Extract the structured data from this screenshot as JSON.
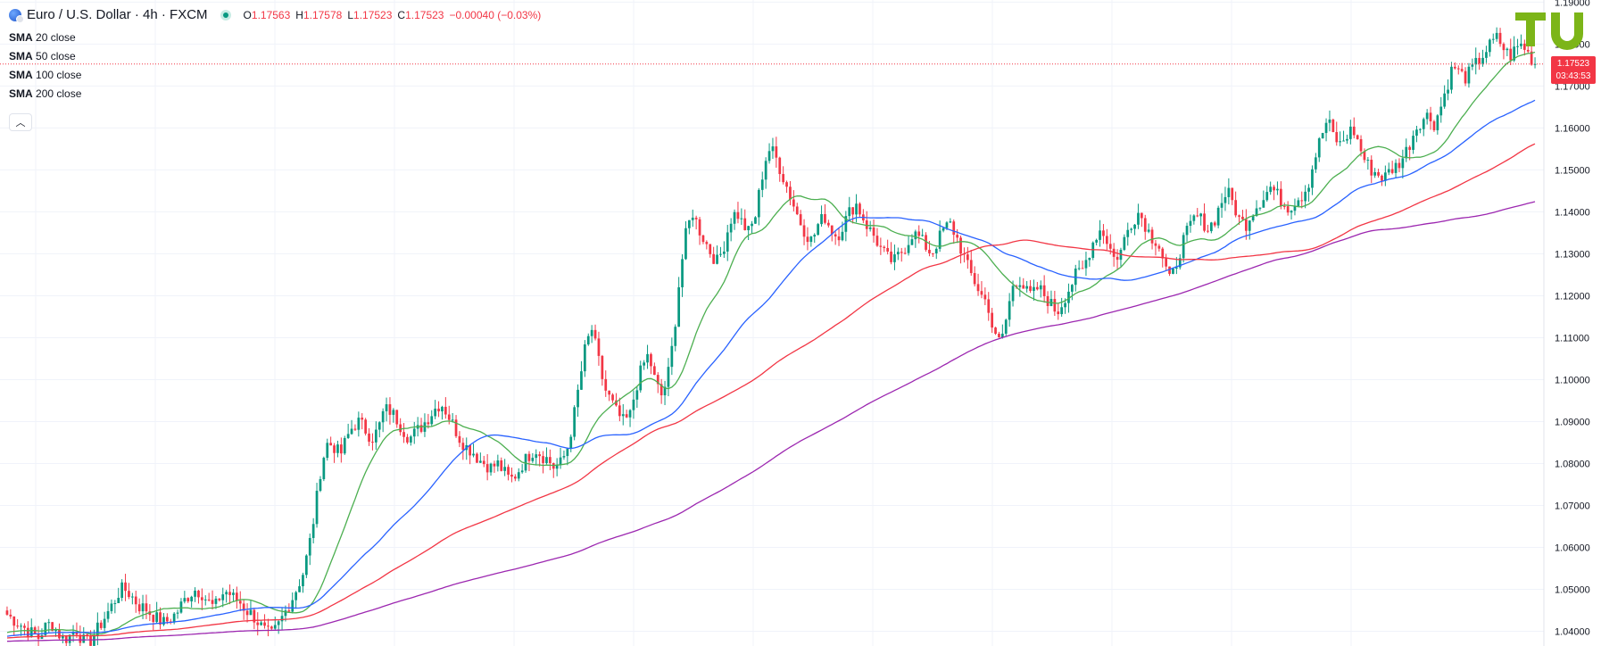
{
  "header": {
    "title": "Euro / U.S. Dollar · 4h · FXCM",
    "open_label": "O",
    "open": "1.17563",
    "high_label": "H",
    "high": "1.17578",
    "low_label": "L",
    "low": "1.17523",
    "close_label": "C",
    "close": "1.17523",
    "change": "−0.00040 (−0.03%)",
    "icon": "euro-dollar-flag-icon"
  },
  "indicators": [
    {
      "name": "SMA",
      "params": "20 close",
      "color": "#4caf50"
    },
    {
      "name": "SMA",
      "params": "50 close",
      "color": "#2962ff"
    },
    {
      "name": "SMA",
      "params": "100 close",
      "color": "#f23645"
    },
    {
      "name": "SMA",
      "params": "200 close",
      "color": "#9c27b0"
    }
  ],
  "price_tag": {
    "price": "1.17523",
    "countdown": "03:43:53",
    "color": "#f23645"
  },
  "logo": {
    "text": "TU",
    "color": "#7cb518"
  },
  "colors": {
    "up": "#089981",
    "down": "#f23645",
    "grid": "#f0f3fa",
    "axis_text": "#131722"
  },
  "chart_data": {
    "type": "candlestick",
    "title": "Euro / U.S. Dollar · 4h · FXCM",
    "y_axis_ticks": [
      "1.19000",
      "1.18000",
      "1.17000",
      "1.16000",
      "1.15000",
      "1.14000",
      "1.13000",
      "1.12000",
      "1.11000",
      "1.10000",
      "1.09000",
      "1.08000",
      "1.07000",
      "1.06000",
      "1.05000",
      "1.04000"
    ],
    "ylim": [
      1.0365,
      1.1905
    ],
    "last_price": 1.17523,
    "close_path": [
      1.044,
      1.0428,
      1.0418,
      1.0405,
      1.0395,
      1.0385,
      1.041,
      1.042,
      1.0398,
      1.038,
      1.039,
      1.0405,
      1.0378,
      1.0372,
      1.0395,
      1.042,
      1.0445,
      1.047,
      1.05,
      1.0498,
      1.048,
      1.046,
      1.0455,
      1.044,
      1.0428,
      1.042,
      1.043,
      1.0445,
      1.047,
      1.0488,
      1.05,
      1.049,
      1.047,
      1.0455,
      1.0488,
      1.0495,
      1.048,
      1.047,
      1.045,
      1.044,
      1.042,
      1.04,
      1.039,
      1.041,
      1.044,
      1.0468,
      1.05,
      1.0535,
      1.06,
      1.069,
      1.08,
      1.085,
      1.084,
      1.082,
      1.086,
      1.089,
      1.09,
      1.088,
      1.086,
      1.088,
      1.093,
      1.0925,
      1.0905,
      1.088,
      1.086,
      1.0875,
      1.089,
      1.091,
      1.093,
      1.0945,
      1.092,
      1.089,
      1.086,
      1.084,
      1.083,
      1.081,
      1.08,
      1.079,
      1.08,
      1.078,
      1.076,
      1.0775,
      1.08,
      1.082,
      1.0835,
      1.082,
      1.081,
      1.079,
      1.08,
      1.083,
      1.09,
      1.099,
      1.108,
      1.112,
      1.105,
      1.098,
      1.095,
      1.092,
      1.09,
      1.091,
      1.098,
      1.103,
      1.106,
      1.1,
      1.096,
      1.1,
      1.11,
      1.125,
      1.135,
      1.14,
      1.136,
      1.133,
      1.13,
      1.128,
      1.132,
      1.138,
      1.14,
      1.137,
      1.135,
      1.139,
      1.148,
      1.155,
      1.154,
      1.15,
      1.146,
      1.142,
      1.138,
      1.135,
      1.133,
      1.137,
      1.139,
      1.136,
      1.134,
      1.137,
      1.14,
      1.142,
      1.139,
      1.136,
      1.134,
      1.131,
      1.129,
      1.128,
      1.13,
      1.132,
      1.135,
      1.134,
      1.132,
      1.13,
      1.133,
      1.136,
      1.137,
      1.134,
      1.13,
      1.126,
      1.123,
      1.12,
      1.118,
      1.11,
      1.109,
      1.115,
      1.123,
      1.124,
      1.121,
      1.12,
      1.122,
      1.12,
      1.118,
      1.116,
      1.119,
      1.122,
      1.125,
      1.126,
      1.13,
      1.134,
      1.136,
      1.133,
      1.129,
      1.13,
      1.135,
      1.138,
      1.14,
      1.137,
      1.134,
      1.133,
      1.128,
      1.123,
      1.128,
      1.133,
      1.136,
      1.139,
      1.138,
      1.136,
      1.138,
      1.142,
      1.145,
      1.142,
      1.138,
      1.137,
      1.14,
      1.142,
      1.144,
      1.146,
      1.144,
      1.142,
      1.141,
      1.143,
      1.144,
      1.147,
      1.153,
      1.158,
      1.162,
      1.158,
      1.156,
      1.158,
      1.16,
      1.156,
      1.152,
      1.15,
      1.149,
      1.148,
      1.15,
      1.151,
      1.153,
      1.156,
      1.16,
      1.162,
      1.163,
      1.161,
      1.165,
      1.17,
      1.175,
      1.173,
      1.172,
      1.174,
      1.176,
      1.178,
      1.18,
      1.1815,
      1.179,
      1.177,
      1.179,
      1.18,
      1.1775,
      1.17523
    ],
    "series": [
      {
        "name": "SMA 20 close",
        "color": "#4caf50",
        "period": 20
      },
      {
        "name": "SMA 50 close",
        "color": "#2962ff",
        "period": 50
      },
      {
        "name": "SMA 100 close",
        "color": "#f23645",
        "period": 100
      },
      {
        "name": "SMA 200 close",
        "color": "#9c27b0",
        "period": 200
      }
    ],
    "grid": true
  }
}
